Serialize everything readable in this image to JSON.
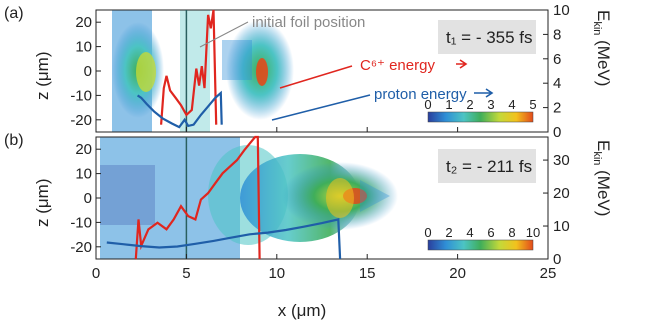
{
  "colors": {
    "carbon": "#e0261f",
    "proton": "#1f5ea8",
    "foil": "#2a5f5f",
    "annotation_gray": "#888888",
    "box_gray": "#e2e2e2",
    "colormap": [
      "#2a3f9d",
      "#2f8fd6",
      "#4cc4c4",
      "#3fae5a",
      "#c3d93a",
      "#f2c21d",
      "#e24a1b"
    ]
  },
  "xaxis": {
    "label": "x (μm)",
    "ticks": [
      "0",
      "5",
      "10",
      "15",
      "20",
      "25"
    ],
    "range": [
      0,
      25
    ]
  },
  "chart_data": [
    {
      "type": "line",
      "panel_label": "(a)",
      "time_label": "t₁ = - 355 fs",
      "ylabel": "z (μm)",
      "yticks": [
        "-20",
        "-10",
        "0",
        "10",
        "20"
      ],
      "ylim": [
        -25,
        25
      ],
      "y2label": "E_kin (MeV)",
      "y2label_sub": "kin",
      "y2ticks": [
        "0",
        "2",
        "4",
        "6",
        "8",
        "10"
      ],
      "y2lim": [
        0,
        10
      ],
      "colorbar_ticks": [
        "0",
        "1",
        "2",
        "3",
        "4",
        "5"
      ],
      "colorbar_range": [
        0,
        5
      ],
      "foil_x": 5,
      "annotations": {
        "foil": "initial foil position",
        "carbon": "C⁶⁺ energy",
        "proton": "proton energy"
      },
      "series": [
        {
          "name": "C⁶⁺ energy",
          "x": [
            3.6,
            3.75,
            3.9,
            4.1,
            4.4,
            4.7,
            5.0,
            5.3,
            5.55,
            5.7,
            5.85,
            6.0,
            6.2,
            6.35,
            6.5,
            6.65
          ],
          "y": [
            0.6,
            3.6,
            4.6,
            3.4,
            2.8,
            2.2,
            1.4,
            1.8,
            5.2,
            3.8,
            5.4,
            3.6,
            9.6,
            8.5,
            10,
            0.6
          ]
        },
        {
          "name": "proton energy",
          "x": [
            2.3,
            2.5,
            2.8,
            3.2,
            3.7,
            4.2,
            4.6,
            4.9,
            5.1,
            5.4,
            5.8,
            6.2,
            6.6,
            6.9,
            6.95
          ],
          "y": [
            3.0,
            2.8,
            2.3,
            1.7,
            1.1,
            0.7,
            0.4,
            1.0,
            0.5,
            0.6,
            1.4,
            2.1,
            2.8,
            3.2,
            0.6
          ]
        }
      ]
    },
    {
      "type": "line",
      "panel_label": "(b)",
      "time_label": "t₂ = - 211 fs",
      "ylabel": "z (μm)",
      "yticks": [
        "-20",
        "-10",
        "0",
        "10",
        "20"
      ],
      "ylim": [
        -25,
        25
      ],
      "y2label": "E_kin (MeV)",
      "y2label_sub": "kin",
      "y2ticks": [
        "0",
        "10",
        "20",
        "30"
      ],
      "y2lim": [
        0,
        37
      ],
      "colorbar_ticks": [
        "0",
        "2",
        "4",
        "6",
        "8",
        "10"
      ],
      "colorbar_range": [
        0,
        10
      ],
      "foil_x": 5,
      "series": [
        {
          "name": "C⁶⁺ energy",
          "x": [
            2.2,
            2.35,
            2.5,
            2.9,
            3.4,
            3.9,
            4.3,
            4.7,
            5.1,
            5.5,
            5.8,
            6.2,
            6.6,
            7.0,
            7.4,
            7.8,
            8.2,
            8.5,
            8.8,
            8.95,
            9.05
          ],
          "y": [
            0,
            12,
            4,
            9,
            11,
            9,
            12,
            16,
            13,
            12,
            18,
            20,
            23,
            26,
            28,
            30,
            33,
            35,
            37,
            37,
            0
          ]
        },
        {
          "name": "proton energy",
          "x": [
            0.6,
            1.5,
            2.5,
            3.5,
            4.5,
            5.5,
            6.5,
            7.5,
            8.5,
            9.5,
            10.5,
            11.5,
            12.5,
            13.4,
            13.5
          ],
          "y": [
            5.0,
            4.5,
            3.9,
            3.5,
            3.8,
            4.6,
            5.5,
            6.5,
            7.5,
            8.0,
            8.8,
            9.8,
            10.9,
            12.0,
            0
          ]
        }
      ]
    }
  ]
}
